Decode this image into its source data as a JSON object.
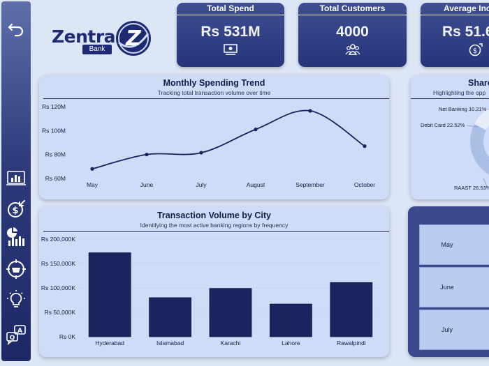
{
  "brand": {
    "name": "Zentra",
    "sub": "Bank",
    "emblem_letter": "Z"
  },
  "sidebar": {
    "items": [
      {
        "name": "back-arrow-icon"
      },
      {
        "name": "bar-chart-report-icon"
      },
      {
        "name": "dollar-refund-icon"
      },
      {
        "name": "pie-bar-analytics-icon"
      },
      {
        "name": "shopping-basket-target-icon"
      },
      {
        "name": "lightbulb-icon"
      },
      {
        "name": "question-answer-icon"
      }
    ]
  },
  "kpis": [
    {
      "title": "Total Spend",
      "value": "Rs 531M",
      "icon": "cash-icon"
    },
    {
      "title": "Total Customers",
      "value": "4000",
      "icon": "customers-icon"
    },
    {
      "title": "Average Inc",
      "value": "Rs 51.6",
      "icon": "dollar-cycle-icon"
    }
  ],
  "trend": {
    "title": "Monthly Spending Trend",
    "subtitle": "Tracking total transaction volume over time",
    "chart_data": {
      "type": "line",
      "categories": [
        "May",
        "June",
        "July",
        "August",
        "September",
        "October"
      ],
      "values": [
        68,
        80,
        81.5,
        101,
        116.5,
        87
      ],
      "ylim": [
        60,
        120
      ],
      "yticks": [
        60,
        80,
        100,
        120
      ],
      "ytick_labels": [
        "Rs 60M",
        "Rs 80M",
        "Rs 100M",
        "Rs 120M"
      ],
      "grid": false,
      "color": "#1a2060"
    }
  },
  "city": {
    "title": "Transaction Volume by City",
    "subtitle": "Identifying the most active banking regions by frequency",
    "chart_data": {
      "type": "bar",
      "categories": [
        "Hyderabad",
        "Islamabad",
        "Karachi",
        "Lahore",
        "Rawalpindi"
      ],
      "values": [
        172000,
        80000,
        99000,
        67000,
        111000
      ],
      "ylim": [
        0,
        200000
      ],
      "yticks": [
        0,
        50000,
        100000,
        150000,
        200000
      ],
      "ytick_labels": [
        "Rs 0K",
        "Rs 50,000K",
        "Rs 100,000K",
        "Rs 150,000K",
        "Rs 200,000K"
      ],
      "grid": true,
      "color": "#1c2560"
    }
  },
  "share": {
    "title": "Share",
    "subtitle": "Highlighting the opp",
    "chart_data": {
      "type": "pie",
      "labels": [
        "Net Banking 10.21%",
        "Debit Card 22.52%",
        "RAAST 26.53%"
      ],
      "values": [
        10.21,
        22.52,
        26.53
      ]
    }
  },
  "months_table": {
    "rows": [
      "May",
      "June",
      "July"
    ]
  }
}
